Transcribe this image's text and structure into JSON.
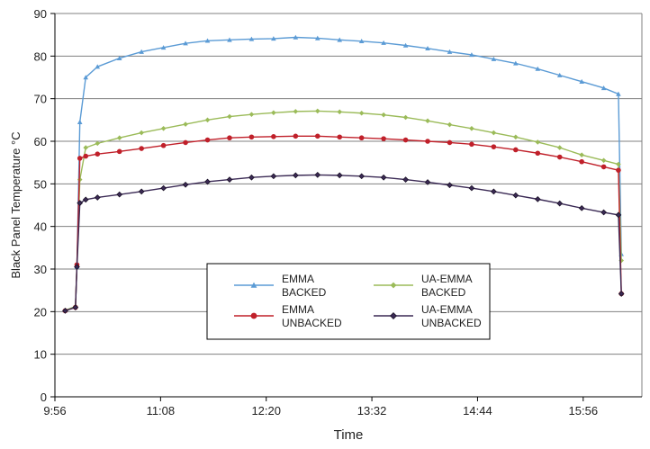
{
  "chart_data": {
    "type": "line",
    "title": "",
    "xlabel": "Time",
    "ylabel": "Black Panel Temperature °C",
    "x_tick_labels": [
      "9:56",
      "11:08",
      "12:20",
      "13:32",
      "14:44",
      "15:56"
    ],
    "x_ticks_minutes": [
      596,
      668,
      740,
      812,
      884,
      956
    ],
    "xlim_minutes": [
      596,
      996
    ],
    "ylim": [
      0,
      90
    ],
    "y_ticks": [
      0,
      10,
      20,
      30,
      40,
      50,
      60,
      70,
      80,
      90
    ],
    "grid": "horizontal",
    "legend_position": "lower-center",
    "series": [
      {
        "name": "EMMA BACKED",
        "label_lines": [
          "EMMA",
          "BACKED"
        ],
        "color": "#5b9bd5",
        "marker": "triangle",
        "x": [
          603,
          610,
          611,
          613,
          617,
          625,
          640,
          655,
          670,
          685,
          700,
          715,
          730,
          745,
          760,
          775,
          790,
          805,
          820,
          835,
          850,
          865,
          880,
          895,
          910,
          925,
          940,
          955,
          970,
          980,
          982
        ],
        "y": [
          20.3,
          21.2,
          30.5,
          64.5,
          75,
          77.5,
          79.5,
          81,
          82,
          83,
          83.6,
          83.8,
          84,
          84.1,
          84.4,
          84.2,
          83.8,
          83.5,
          83.1,
          82.5,
          81.8,
          81,
          80.3,
          79.3,
          78.3,
          77,
          75.5,
          74,
          72.5,
          71.1,
          33.5
        ]
      },
      {
        "name": "UA-EMMA BACKED",
        "label_lines": [
          "UA-EMMA",
          "BACKED"
        ],
        "color": "#9bbb59",
        "marker": "diamond",
        "x": [
          603,
          610,
          611,
          613,
          617,
          625,
          640,
          655,
          670,
          685,
          700,
          715,
          730,
          745,
          760,
          775,
          790,
          805,
          820,
          835,
          850,
          865,
          880,
          895,
          910,
          925,
          940,
          955,
          970,
          980,
          982
        ],
        "y": [
          20.3,
          21.2,
          31,
          51,
          58.5,
          59.5,
          60.8,
          62,
          63,
          64,
          65,
          65.8,
          66.3,
          66.7,
          67,
          67.1,
          66.9,
          66.6,
          66.2,
          65.6,
          64.8,
          63.9,
          63,
          62,
          61,
          59.8,
          58.5,
          56.8,
          55.5,
          54.6,
          32
        ]
      },
      {
        "name": "EMMA UNBACKED",
        "label_lines": [
          "EMMA",
          "UNBACKED"
        ],
        "color": "#c0202a",
        "marker": "circle",
        "x": [
          603,
          610,
          611,
          613,
          617,
          625,
          640,
          655,
          670,
          685,
          700,
          715,
          730,
          745,
          760,
          775,
          790,
          805,
          820,
          835,
          850,
          865,
          880,
          895,
          910,
          925,
          940,
          955,
          970,
          980,
          982
        ],
        "y": [
          20.2,
          21,
          31,
          56,
          56.5,
          57,
          57.6,
          58.3,
          59,
          59.7,
          60.3,
          60.8,
          61,
          61.1,
          61.2,
          61.2,
          61,
          60.8,
          60.6,
          60.3,
          60,
          59.7,
          59.3,
          58.7,
          58,
          57.2,
          56.3,
          55.2,
          54,
          53.2,
          24.2
        ]
      },
      {
        "name": "UA-EMMA UNBACKED",
        "label_lines": [
          "UA-EMMA",
          "UNBACKED"
        ],
        "color": "#3b2a55",
        "marker": "diamond-outline",
        "x": [
          603,
          610,
          611,
          613,
          617,
          625,
          640,
          655,
          670,
          685,
          700,
          715,
          730,
          745,
          760,
          775,
          790,
          805,
          820,
          835,
          850,
          865,
          880,
          895,
          910,
          925,
          940,
          955,
          970,
          980,
          982
        ],
        "y": [
          20.2,
          21,
          30.5,
          45.5,
          46.3,
          46.8,
          47.5,
          48.2,
          49,
          49.8,
          50.5,
          51,
          51.5,
          51.8,
          52,
          52.1,
          52,
          51.8,
          51.5,
          51,
          50.4,
          49.7,
          49,
          48.2,
          47.3,
          46.4,
          45.4,
          44.3,
          43.3,
          42.7,
          24.2
        ]
      }
    ]
  }
}
